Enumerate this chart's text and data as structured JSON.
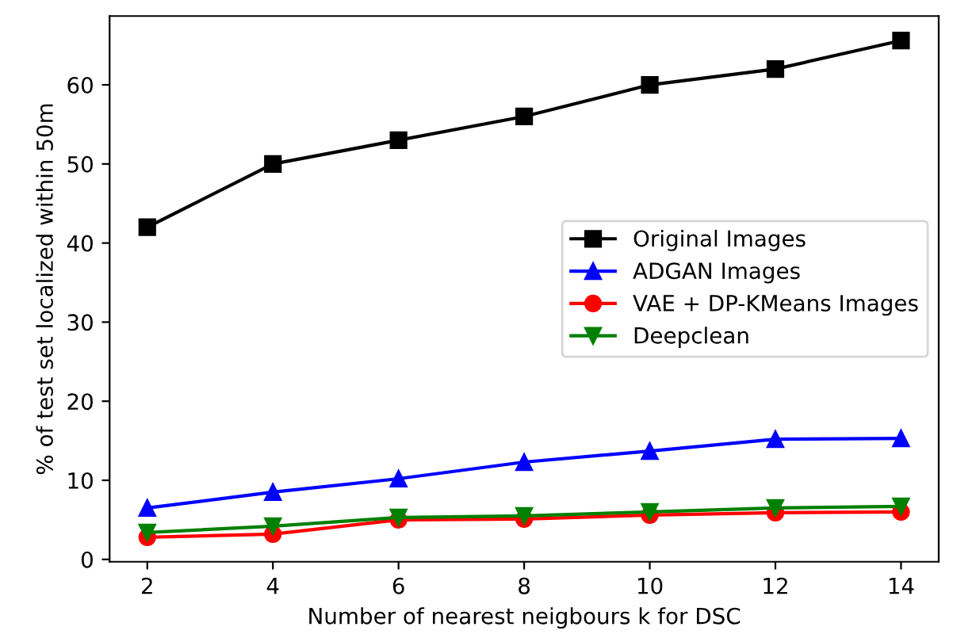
{
  "chart_data": {
    "type": "line",
    "xlabel": "Number of nearest neigbours k for DSC",
    "ylabel": "% of test set localized within 50m",
    "x": [
      2,
      4,
      6,
      8,
      10,
      12,
      14
    ],
    "series": [
      {
        "name": "Original Images",
        "color": "#000000",
        "marker": "square",
        "values": [
          42,
          50,
          53,
          56,
          60,
          62,
          65.6
        ]
      },
      {
        "name": "ADGAN Images",
        "color": "#0000ff",
        "marker": "triangle",
        "values": [
          6.5,
          8.5,
          10.2,
          12.3,
          13.7,
          15.2,
          15.3
        ]
      },
      {
        "name": "VAE + DP-KMeans Images",
        "color": "#ff0000",
        "marker": "circle",
        "values": [
          2.8,
          3.2,
          5.0,
          5.1,
          5.6,
          5.9,
          6.0
        ]
      },
      {
        "name": "Deepclean",
        "color": "#008000",
        "marker": "triangle_down",
        "values": [
          3.4,
          4.2,
          5.3,
          5.5,
          6.0,
          6.5,
          6.7
        ]
      }
    ],
    "xlim": [
      1.4,
      14.6
    ],
    "ylim": [
      -0.3,
      68.7
    ],
    "xticks": [
      2,
      4,
      6,
      8,
      10,
      12,
      14
    ],
    "yticks": [
      0,
      10,
      20,
      30,
      40,
      50,
      60
    ],
    "legend": "center right",
    "grid": false,
    "line_style": "solid"
  }
}
